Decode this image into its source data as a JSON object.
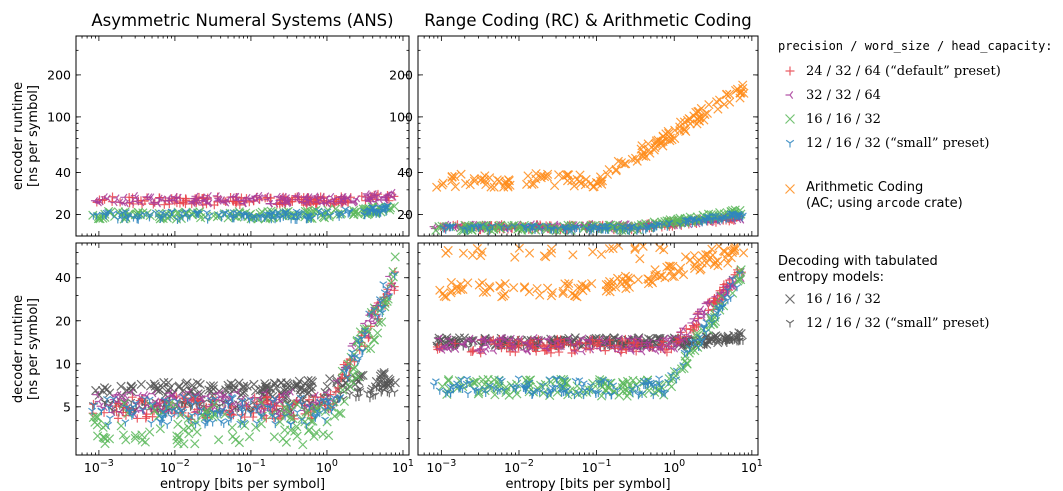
{
  "chart_data": [
    {
      "type": "scatter",
      "title": "Asymmetric Numeral Systems (ANS)",
      "xlabel": "",
      "ylabel": [
        "encoder runtime",
        "[ns per symbol]"
      ],
      "xscale": "log",
      "yscale": "log",
      "xlim": [
        0.0005,
        12
      ],
      "ylim": [
        14,
        380
      ],
      "yticks": [
        20,
        40,
        100,
        200
      ],
      "series": [
        {
          "key": "default",
          "y": 25,
          "jitter": 0.03,
          "rise_start": 1.5,
          "rise_to": 27
        },
        {
          "key": "w32",
          "y": 25.5,
          "jitter": 0.03,
          "rise_start": 1.5,
          "rise_to": 27
        },
        {
          "key": "p16",
          "y": 19.8,
          "jitter": 0.03,
          "rise_start": 0.5,
          "rise_to": 22
        },
        {
          "key": "small",
          "y": 19.6,
          "jitter": 0.03,
          "rise_start": 0.5,
          "rise_to": 22
        }
      ]
    },
    {
      "type": "scatter",
      "title": "Range Coding (RC) & Arithmetic Coding",
      "xlabel": "",
      "ylabel": [],
      "xscale": "log",
      "yscale": "log",
      "xlim": [
        0.0005,
        12
      ],
      "ylim": [
        14,
        380
      ],
      "yticks": [
        20,
        40,
        100,
        200
      ],
      "series": [
        {
          "key": "ac",
          "y": 35,
          "jitter": 0.05,
          "rise_start": 0.1,
          "rise_to": 160
        },
        {
          "key": "default",
          "y": 16.2,
          "jitter": 0.02,
          "rise_start": 0.3,
          "rise_to": 19
        },
        {
          "key": "w32",
          "y": 16.4,
          "jitter": 0.02,
          "rise_start": 0.3,
          "rise_to": 19
        },
        {
          "key": "p16",
          "y": 16.0,
          "jitter": 0.02,
          "rise_start": 0.3,
          "rise_to": 21
        },
        {
          "key": "small",
          "y": 15.9,
          "jitter": 0.02,
          "rise_start": 0.3,
          "rise_to": 20
        }
      ]
    },
    {
      "type": "scatter",
      "title": "",
      "xlabel": "entropy [bits per symbol]",
      "ylabel": [
        "decoder runtime",
        "[ns per symbol]"
      ],
      "xscale": "log",
      "yscale": "log",
      "xlim": [
        0.0005,
        12
      ],
      "ylim": [
        2.3,
        70
      ],
      "xticks": [
        "10^-3",
        "10^-2",
        "10^-1",
        "10^0",
        "10^1"
      ],
      "yticks": [
        5,
        10,
        20,
        40
      ],
      "series": [
        {
          "key": "t16",
          "y": 6.6,
          "jitter": 0.05,
          "rise_start": 0.3,
          "rise_to": 8.0
        },
        {
          "key": "tsmall",
          "y": 5.0,
          "jitter": 0.04,
          "rise_start": 0.3,
          "rise_to": 6.7
        },
        {
          "key": "default",
          "y": 4.9,
          "jitter": 0.08,
          "rise_start": 1.0,
          "rise_to": 40
        },
        {
          "key": "w32",
          "y": 5.3,
          "jitter": 0.08,
          "rise_start": 1.0,
          "rise_to": 42
        },
        {
          "key": "p16",
          "y": 3.8,
          "jitter": 0.15,
          "rise_start": 1.0,
          "rise_to": 42
        },
        {
          "key": "small",
          "y": 4.7,
          "jitter": 0.1,
          "rise_start": 1.0,
          "rise_to": 43
        }
      ]
    },
    {
      "type": "scatter",
      "title": "",
      "xlabel": "entropy [bits per symbol]",
      "ylabel": [],
      "xscale": "log",
      "yscale": "log",
      "xlim": [
        0.0005,
        12
      ],
      "ylim": [
        2.3,
        70
      ],
      "xticks": [
        "10^-3",
        "10^-2",
        "10^-1",
        "10^0",
        "10^1"
      ],
      "yticks": [],
      "series": [
        {
          "key": "ac",
          "y": 33,
          "jitter": 0.05,
          "rise_start": 0.1,
          "rise_to": 60,
          "upper": 60
        },
        {
          "key": "t16",
          "y": 14.2,
          "jitter": 0.03,
          "rise_start": 2.0,
          "rise_to": 16
        },
        {
          "key": "tsmall",
          "y": 14.0,
          "jitter": 0.03,
          "rise_start": 2.0,
          "rise_to": 15.5
        },
        {
          "key": "default",
          "y": 13.3,
          "jitter": 0.05,
          "rise_start": 1.0,
          "rise_to": 46
        },
        {
          "key": "w32",
          "y": 13.6,
          "jitter": 0.05,
          "rise_start": 1.0,
          "rise_to": 46
        },
        {
          "key": "p16",
          "y": 6.8,
          "jitter": 0.06,
          "rise_start": 0.8,
          "rise_to": 46
        },
        {
          "key": "small",
          "y": 6.9,
          "jitter": 0.06,
          "rise_start": 0.8,
          "rise_to": 46
        }
      ]
    }
  ],
  "colors": {
    "default": "#e8434b",
    "w32": "#a83c9a",
    "p16": "#5cb85c",
    "small": "#2f86c0",
    "ac": "#ff8c1a",
    "t16": "#555555",
    "tsmall": "#555555"
  },
  "markers": {
    "default": "plus",
    "w32": "tri-left",
    "p16": "x",
    "small": "tri-down",
    "ac": "x",
    "t16": "x",
    "tsmall": "tri-down"
  },
  "legend": {
    "header": "precision / word_size / head_capacity:",
    "entries": [
      {
        "key": "default",
        "label": "24 / 32 / 64 (“default” preset)"
      },
      {
        "key": "w32",
        "label": "32 / 32 / 64"
      },
      {
        "key": "p16",
        "label": "16 / 16 / 32"
      },
      {
        "key": "small",
        "label": "12 / 16 / 32 (“small” preset)"
      }
    ],
    "ac_label_line1": "Arithmetic Coding",
    "ac_label_line2_pre": "(AC; using ",
    "ac_label_line2_mono": "arcode",
    "ac_label_line2_post": " crate)",
    "tab_header_line1": "Decoding with tabulated",
    "tab_header_line2": "entropy models:",
    "tab_entries": [
      {
        "key": "t16",
        "label": "16 / 16 / 32"
      },
      {
        "key": "tsmall",
        "label": "12 / 16 / 32 (“small” preset)"
      }
    ]
  }
}
